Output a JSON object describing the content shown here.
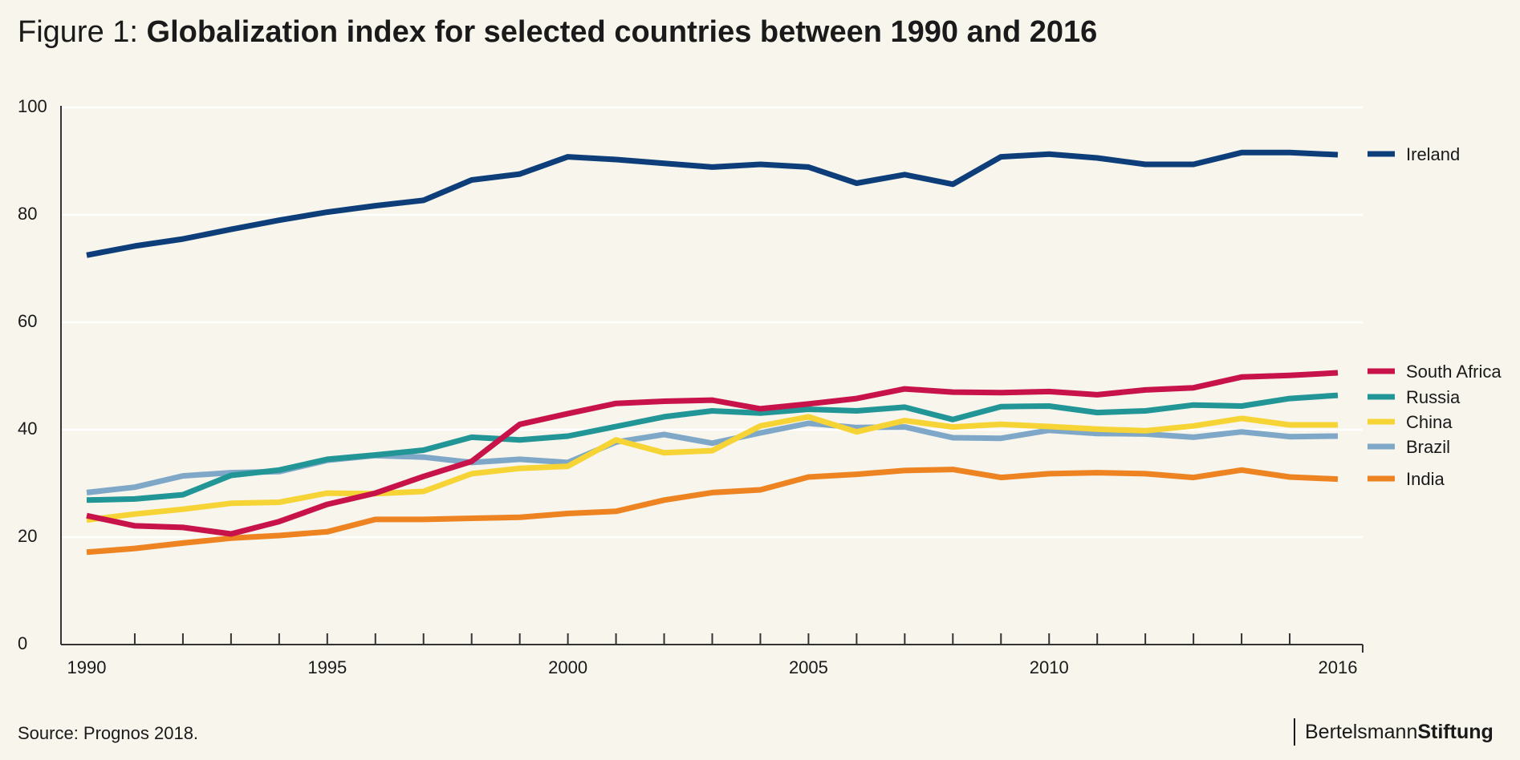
{
  "title": {
    "prefix": "Figure 1: ",
    "main": "Globalization index for selected countries between 1990 and 2016"
  },
  "source": "Source: Prognos 2018.",
  "brand": {
    "part1": "Bertelsmann",
    "part2": "Stiftung"
  },
  "colors": {
    "background": "#f7f5ec",
    "grid": "#ffffff",
    "axis": "#333333",
    "text": "#1a1a1a"
  },
  "chart_data": {
    "type": "line",
    "title": "Globalization index for selected countries between 1990 and 2016",
    "xlabel": "",
    "ylabel": "",
    "ylim": [
      0,
      100
    ],
    "xlim": [
      1990,
      2016
    ],
    "grid": true,
    "legend": "right",
    "y_ticks": [
      "0",
      "20",
      "40",
      "60",
      "80",
      "100"
    ],
    "x_tick_labels": [
      "1990",
      "1995",
      "2000",
      "2005",
      "2010",
      "2016"
    ],
    "x": [
      1990,
      1991,
      1992,
      1993,
      1994,
      1995,
      1996,
      1997,
      1998,
      1999,
      2000,
      2001,
      2002,
      2003,
      2004,
      2005,
      2006,
      2007,
      2008,
      2009,
      2010,
      2011,
      2012,
      2013,
      2014,
      2015,
      2016
    ],
    "series": [
      {
        "name": "Ireland",
        "color": "#0d3e7a",
        "values": [
          72.5,
          74.2,
          75.5,
          77.3,
          79.0,
          80.5,
          81.7,
          82.7,
          86.5,
          87.6,
          90.8,
          90.3,
          89.6,
          88.9,
          89.4,
          88.9,
          85.9,
          87.5,
          85.7,
          90.8,
          91.3,
          90.6,
          89.4,
          89.4,
          91.6,
          91.6,
          91.2
        ]
      },
      {
        "name": "South Africa",
        "color": "#c8124a",
        "values": [
          24.0,
          22.1,
          21.8,
          20.6,
          22.9,
          26.1,
          28.2,
          31.3,
          34.1,
          41.0,
          43.0,
          44.9,
          45.3,
          45.5,
          43.9,
          44.8,
          45.8,
          47.6,
          47.0,
          46.9,
          47.1,
          46.5,
          47.4,
          47.8,
          49.8,
          50.1,
          50.6
        ]
      },
      {
        "name": "Russia",
        "color": "#229696",
        "values": [
          26.9,
          27.1,
          27.9,
          31.5,
          32.5,
          34.5,
          35.3,
          36.2,
          38.6,
          38.1,
          38.8,
          40.6,
          42.4,
          43.5,
          43.1,
          43.8,
          43.5,
          44.2,
          41.9,
          44.3,
          44.4,
          43.2,
          43.5,
          44.6,
          44.4,
          45.8,
          46.4
        ]
      },
      {
        "name": "China",
        "color": "#f6d435",
        "values": [
          23.2,
          24.3,
          25.2,
          26.3,
          26.5,
          28.2,
          28.1,
          28.5,
          31.8,
          32.8,
          33.2,
          38.1,
          35.7,
          36.1,
          40.7,
          42.4,
          39.6,
          41.7,
          40.5,
          41.0,
          40.6,
          40.1,
          39.8,
          40.7,
          42.1,
          40.9,
          40.9
        ]
      },
      {
        "name": "Brazil",
        "color": "#7fa8c8",
        "values": [
          28.3,
          29.3,
          31.4,
          32.0,
          32.2,
          34.3,
          35.2,
          34.9,
          33.9,
          34.5,
          33.9,
          37.7,
          39.1,
          37.5,
          39.4,
          41.2,
          40.4,
          40.5,
          38.5,
          38.4,
          39.9,
          39.3,
          39.2,
          38.6,
          39.6,
          38.7,
          38.8
        ]
      },
      {
        "name": "India",
        "color": "#ee8322",
        "values": [
          17.2,
          17.9,
          18.9,
          19.8,
          20.3,
          21.0,
          23.3,
          23.3,
          23.5,
          23.7,
          24.4,
          24.8,
          26.9,
          28.3,
          28.8,
          31.2,
          31.7,
          32.4,
          32.6,
          31.1,
          31.8,
          32.0,
          31.8,
          31.1,
          32.5,
          31.2,
          30.8
        ]
      }
    ]
  }
}
